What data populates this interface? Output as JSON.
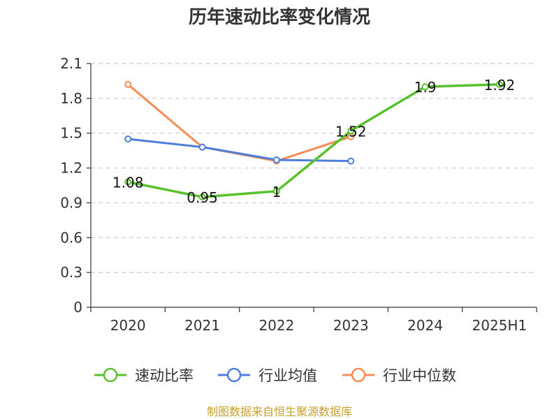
{
  "chart_data": {
    "type": "line",
    "title": "历年速动比率变化情况",
    "categories": [
      "2020",
      "2021",
      "2022",
      "2023",
      "2024",
      "2025H1"
    ],
    "ylim": [
      0,
      2.1
    ],
    "yticks": [
      "0",
      "0.3",
      "0.6",
      "0.9",
      "1.2",
      "1.5",
      "1.8",
      "2.1"
    ],
    "grid": true,
    "legend_position": "bottom",
    "series": [
      {
        "name": "速动比率",
        "color": "#5ac12e",
        "values": [
          1.08,
          0.95,
          1.0,
          1.52,
          1.9,
          1.92
        ],
        "labels": [
          "1.08",
          "0.95",
          "1",
          "1.52",
          "1.9",
          "1.92"
        ]
      },
      {
        "name": "行业均值",
        "color": "#4f7fdb",
        "values": [
          1.45,
          1.38,
          1.27,
          1.26,
          null,
          null
        ]
      },
      {
        "name": "行业中位数",
        "color": "#f78c54",
        "values": [
          1.92,
          1.38,
          1.26,
          1.47,
          null,
          null
        ]
      }
    ]
  },
  "source": "制图数据来自恒生聚源数据库"
}
